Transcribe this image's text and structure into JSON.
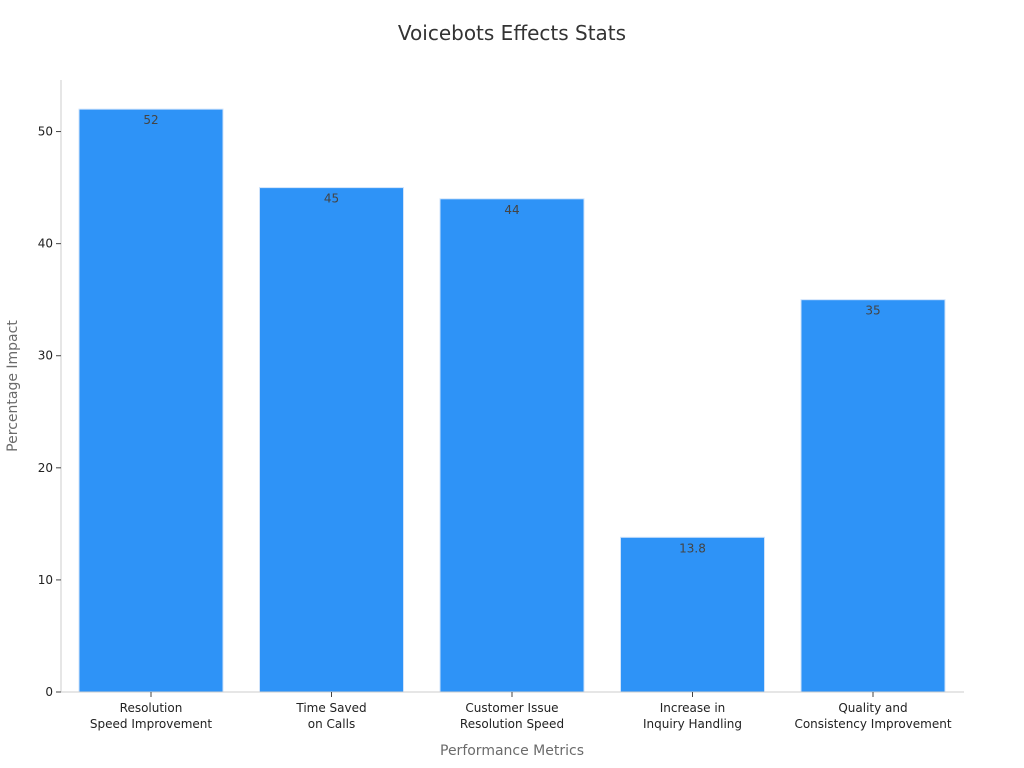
{
  "chart_data": {
    "type": "bar",
    "title": "Voicebots Effects Stats",
    "xlabel": "Performance Metrics",
    "ylabel": "Percentage Impact",
    "categories": [
      [
        "Resolution",
        "Speed Improvement"
      ],
      [
        "Time Saved",
        "on Calls"
      ],
      [
        "Customer Issue",
        "Resolution Speed"
      ],
      [
        "Increase in",
        "Inquiry Handling"
      ],
      [
        "Quality and",
        "Consistency Improvement"
      ]
    ],
    "values": [
      52,
      45,
      44,
      13.8,
      35
    ],
    "value_labels": [
      "52",
      "45",
      "44",
      "13.8",
      "35"
    ],
    "yticks": [
      0,
      10,
      20,
      30,
      40,
      50
    ],
    "ylim": [
      0,
      54.6
    ],
    "grid": false,
    "legend": "none",
    "bar_color": "#2e93f7",
    "bar_edge_color": "#cfe3fb"
  }
}
